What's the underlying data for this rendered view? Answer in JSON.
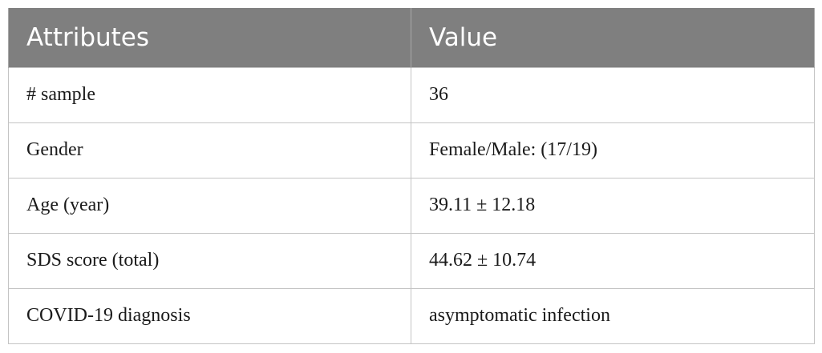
{
  "table": {
    "headers": [
      "Attributes",
      "Value"
    ],
    "rows": [
      {
        "attribute": "# sample",
        "value": "36"
      },
      {
        "attribute": "Gender",
        "value": "Female/Male: (17/19)"
      },
      {
        "attribute": "Age (year)",
        "value": "39.11 ± 12.18"
      },
      {
        "attribute": "SDS score (total)",
        "value": "44.62 ± 10.74"
      },
      {
        "attribute": "COVID-19 diagnosis",
        "value": "asymptomatic infection"
      }
    ]
  },
  "colors": {
    "header_background": "#7f7f7f",
    "header_text": "#ffffff",
    "border": "#c4c4c4"
  }
}
